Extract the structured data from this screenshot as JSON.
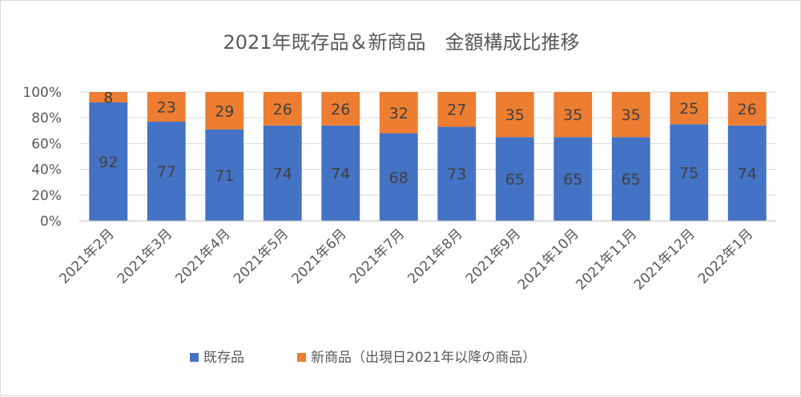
{
  "chart_data": {
    "type": "bar",
    "stacked": true,
    "percent_stacked": true,
    "title": "2021年既存品＆新商品　金額構成比推移",
    "categories": [
      "2021年2月",
      "2021年3月",
      "2021年4月",
      "2021年5月",
      "2021年6月",
      "2021年7月",
      "2021年8月",
      "2021年9月",
      "2021年10月",
      "2021年11月",
      "2021年12月",
      "2022年1月"
    ],
    "series": [
      {
        "name": "既存品",
        "color": "#4472C4",
        "values": [
          92,
          77,
          71,
          74,
          74,
          68,
          73,
          65,
          65,
          65,
          75,
          74
        ]
      },
      {
        "name": "新商品（出現日2021年以降の商品）",
        "color": "#ED7D31",
        "values": [
          8,
          23,
          29,
          26,
          26,
          32,
          27,
          35,
          35,
          35,
          25,
          26
        ]
      }
    ],
    "y_ticks": [
      "0%",
      "20%",
      "40%",
      "60%",
      "80%",
      "100%"
    ],
    "ylim": [
      0,
      100
    ],
    "grid": true,
    "legend_position": "bottom"
  }
}
